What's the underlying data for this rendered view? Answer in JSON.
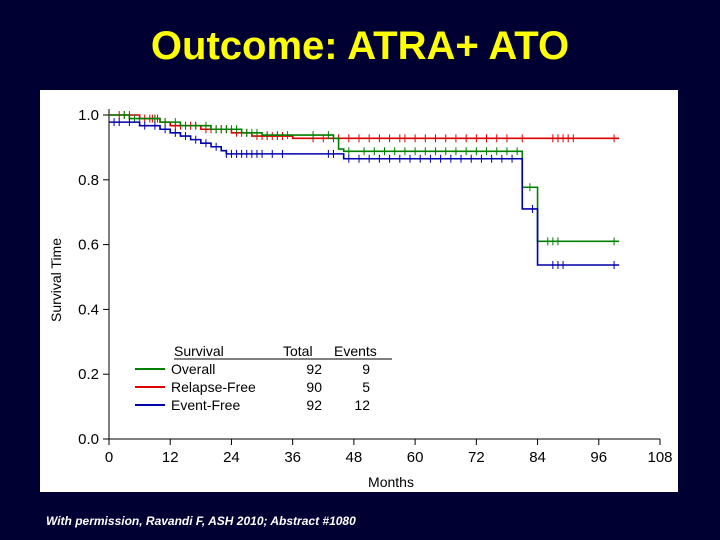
{
  "slide": {
    "title": "Outcome: ATRA+ ATO",
    "footer": "With permission, Ravandi F, ASH 2010; Abstract #1080"
  },
  "colors": {
    "background": "#000033",
    "title": "#ffff00",
    "overall": "#008000",
    "relapse_free": "#dd0000",
    "event_free": "#0000aa"
  },
  "chart_data": {
    "type": "line",
    "subtype": "kaplan-meier",
    "xlabel": "Months",
    "ylabel": "Survival Time",
    "xlim": [
      0,
      108
    ],
    "ylim": [
      0.0,
      1.0
    ],
    "xticks": [
      0,
      12,
      24,
      36,
      48,
      60,
      72,
      84,
      96,
      108
    ],
    "xtick_labels": [
      "0",
      "12",
      "24",
      "36",
      "48",
      "60",
      "72",
      "84",
      "96",
      "108"
    ],
    "yticks": [
      0.0,
      0.2,
      0.4,
      0.6,
      0.8,
      1.0
    ],
    "ytick_labels": [
      "0.0",
      "0.2",
      "0.4",
      "0.6",
      "0.8",
      "1.0"
    ],
    "legend": {
      "placement": "bottom-left",
      "headers": [
        "Survival",
        "Total",
        "Events"
      ],
      "rows": [
        {
          "name": "Overall",
          "total": "92",
          "events": "9"
        },
        {
          "name": "Relapse-Free",
          "total": "90",
          "events": "5"
        },
        {
          "name": "Event-Free",
          "total": "92",
          "events": "12"
        }
      ]
    },
    "series": [
      {
        "name": "Relapse-Free",
        "color": "#dd0000",
        "steps": [
          [
            0,
            1.0
          ],
          [
            6,
            0.989
          ],
          [
            10,
            0.978
          ],
          [
            12,
            0.967
          ],
          [
            18,
            0.956
          ],
          [
            24,
            0.945
          ],
          [
            28,
            0.935
          ],
          [
            36,
            0.928
          ],
          [
            100,
            0.928
          ]
        ],
        "censor": [
          2,
          3,
          4,
          7,
          8,
          8.5,
          9,
          9.5,
          11,
          13,
          14,
          15,
          16,
          17,
          19,
          20,
          21,
          22,
          23,
          25,
          26,
          27,
          29,
          30,
          31,
          32,
          33,
          34,
          40,
          42,
          44,
          45,
          47,
          49,
          51,
          53,
          55,
          57,
          58,
          60,
          62,
          64,
          66,
          68,
          70,
          72,
          74,
          76,
          78,
          81,
          87,
          88,
          89,
          90,
          91,
          99
        ]
      },
      {
        "name": "Overall",
        "color": "#008000",
        "steps": [
          [
            0,
            1.0
          ],
          [
            4,
            0.989
          ],
          [
            10,
            0.978
          ],
          [
            14,
            0.967
          ],
          [
            20,
            0.956
          ],
          [
            26,
            0.945
          ],
          [
            30,
            0.938
          ],
          [
            44,
            0.928
          ],
          [
            45,
            0.895
          ],
          [
            46,
            0.888
          ],
          [
            81,
            0.888
          ],
          [
            81,
            0.777
          ],
          [
            84,
            0.777
          ],
          [
            84,
            0.61
          ],
          [
            100,
            0.61
          ]
        ],
        "censor": [
          3,
          5,
          6,
          9,
          11,
          13,
          15,
          17,
          19,
          21,
          22,
          23,
          24,
          25,
          27,
          28,
          29,
          31,
          33,
          35,
          40,
          43,
          47,
          50,
          52,
          54,
          56,
          58,
          60,
          62,
          64,
          66,
          68,
          70,
          72,
          74,
          76,
          78,
          80,
          82.5,
          86,
          87,
          88,
          99
        ]
      },
      {
        "name": "Event-Free",
        "color": "#0000aa",
        "steps": [
          [
            0,
            0.978
          ],
          [
            6,
            0.967
          ],
          [
            10,
            0.956
          ],
          [
            12,
            0.945
          ],
          [
            14,
            0.935
          ],
          [
            16,
            0.924
          ],
          [
            18,
            0.913
          ],
          [
            20,
            0.902
          ],
          [
            22,
            0.89
          ],
          [
            23,
            0.88
          ],
          [
            45,
            0.88
          ],
          [
            46,
            0.865
          ],
          [
            81,
            0.865
          ],
          [
            81,
            0.71
          ],
          [
            84,
            0.71
          ],
          [
            84,
            0.537
          ],
          [
            100,
            0.537
          ]
        ],
        "censor": [
          1,
          2,
          4,
          7,
          9,
          11,
          13,
          15,
          17,
          19,
          21,
          23,
          24,
          25,
          26,
          27,
          28,
          29,
          30,
          32,
          34,
          43,
          44,
          47,
          49,
          51,
          53,
          55,
          57,
          59,
          61,
          63,
          65,
          67,
          69,
          71,
          73,
          75,
          77,
          79,
          83,
          87,
          88,
          89,
          99
        ]
      }
    ]
  }
}
